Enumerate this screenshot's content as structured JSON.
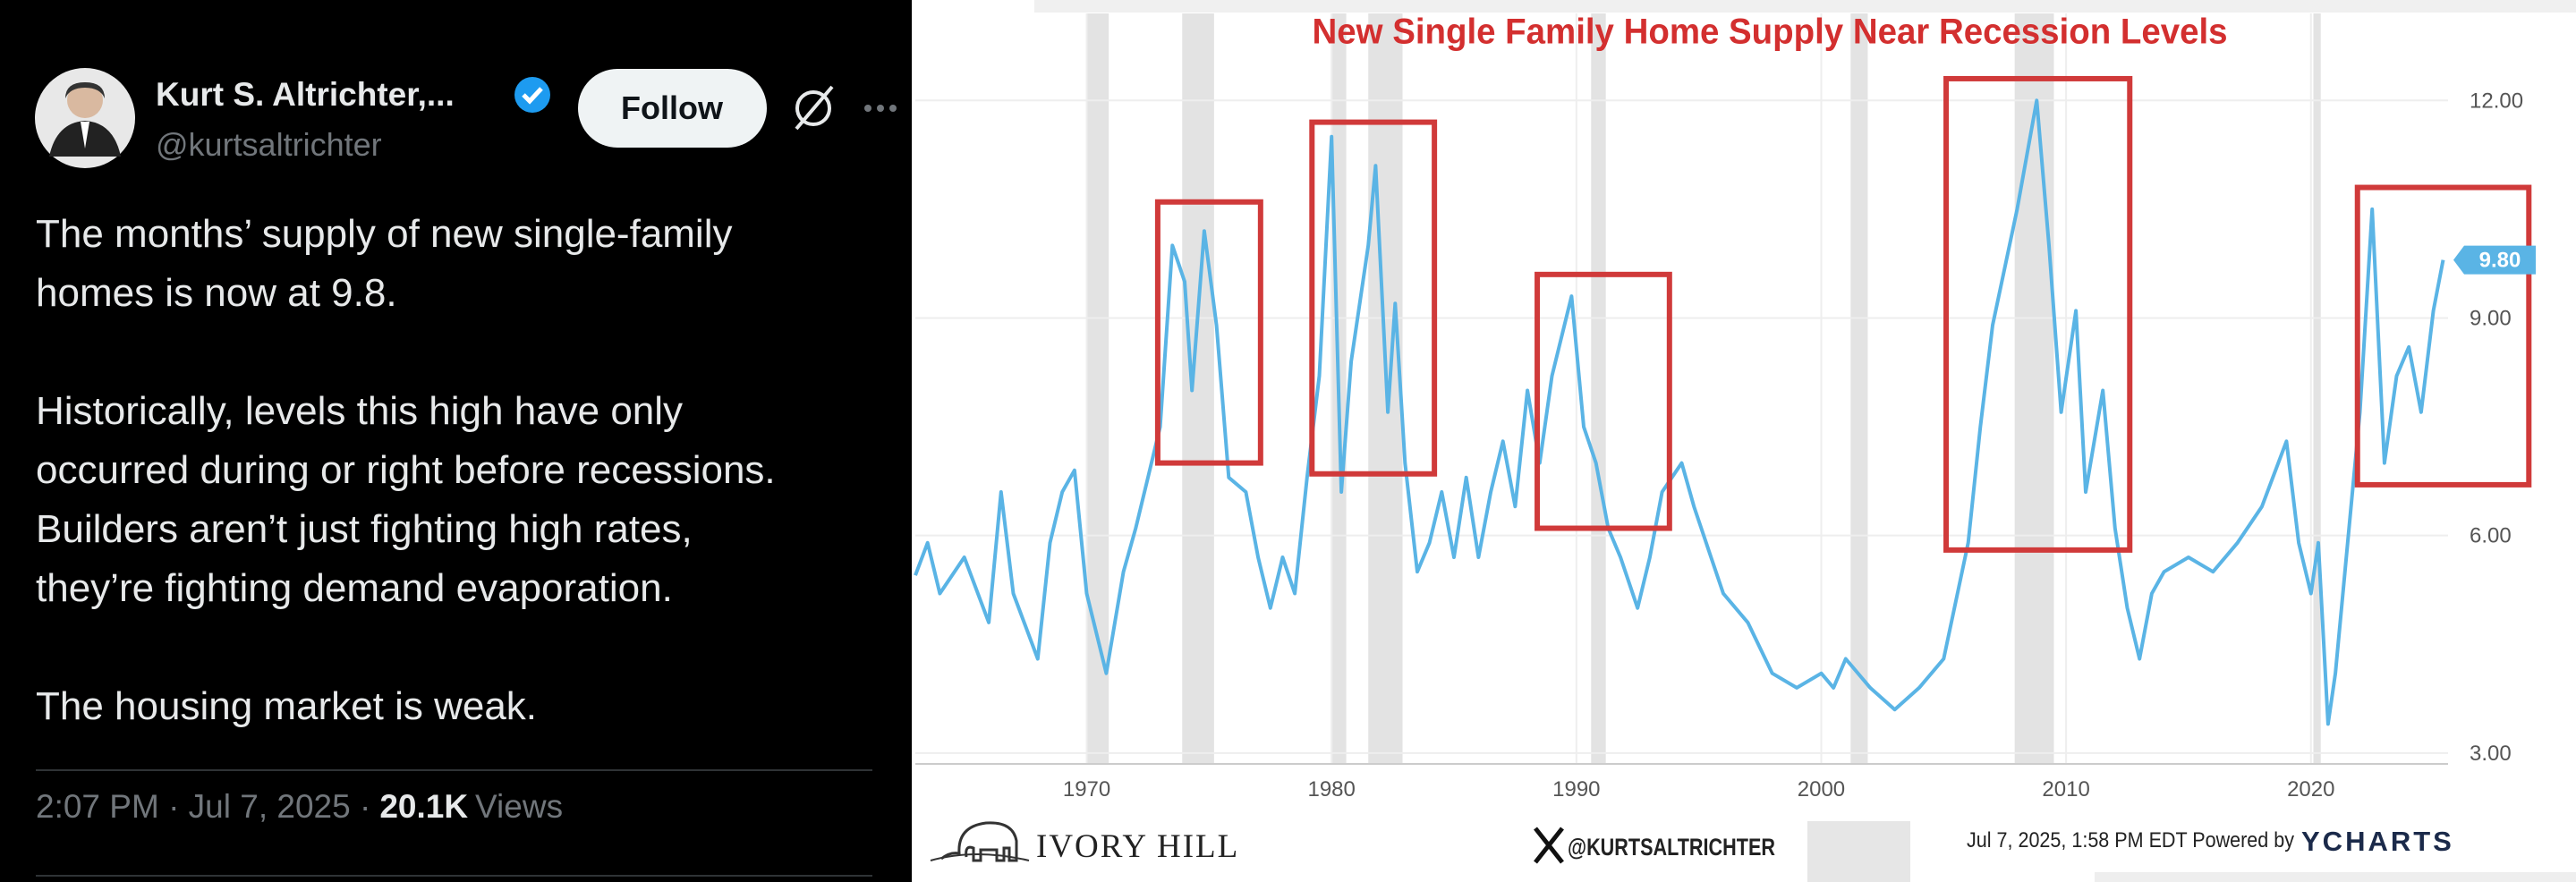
{
  "tweet": {
    "name": "Kurt S. Altrichter,...",
    "handle": "@kurtsaltrichter",
    "follow": "Follow",
    "paragraphs": [
      [
        "The months’ supply of new single-family",
        "homes is now at 9.8."
      ],
      [
        "Historically, levels this high have only",
        "occurred during or right before recessions.",
        "Builders aren’t just fighting high rates,",
        "they’re fighting demand evaporation."
      ],
      [
        "The housing market is weak."
      ]
    ],
    "timestamp": "2:07 PM · Jul 7, 2025 ·",
    "views": "20.1K",
    "views_label": "Views"
  },
  "chart_data": {
    "type": "line",
    "title": "New Single Family Home Supply Near Recession Levels",
    "xlim": [
      1963,
      2025.6
    ],
    "ylim": [
      2.85,
      13.2
    ],
    "xticks": [
      1970,
      1980,
      1990,
      2000,
      2010,
      2020
    ],
    "yticks": [
      {
        "value": 3,
        "label": "3.00"
      },
      {
        "value": 6,
        "label": "6.00"
      },
      {
        "value": 9,
        "label": "9.00"
      },
      {
        "value": 12,
        "label": "12.00"
      }
    ],
    "grid": true,
    "series": [
      {
        "color": "#5ab4e5",
        "x": [
          1963,
          1963.5,
          1964,
          1965,
          1966,
          1966.5,
          1967,
          1968,
          1968.5,
          1969,
          1969.5,
          1970,
          1970.8,
          1971.5,
          1972,
          1972.5,
          1973,
          1973.5,
          1974,
          1974.3,
          1974.8,
          1975.3,
          1975.8,
          1976.5,
          1977,
          1977.5,
          1978,
          1978.5,
          1979,
          1979.5,
          1980,
          1980.4,
          1980.8,
          1981.5,
          1981.8,
          1982.3,
          1982.6,
          1983,
          1983.5,
          1984,
          1984.5,
          1985,
          1985.5,
          1986,
          1986.5,
          1987,
          1987.5,
          1988,
          1988.5,
          1989,
          1989.8,
          1990.3,
          1990.8,
          1991.3,
          1991.8,
          1992.5,
          1993,
          1993.5,
          1994.3,
          1994.8,
          1995.5,
          1996,
          1997,
          1998,
          1999,
          2000,
          2000.5,
          2001,
          2002,
          2003,
          2004,
          2005,
          2006,
          2006.5,
          2007,
          2008,
          2008.8,
          2009.3,
          2009.8,
          2010.4,
          2010.8,
          2011.5,
          2012,
          2012.5,
          2013,
          2013.5,
          2014,
          2015,
          2016,
          2017,
          2018,
          2019,
          2019.5,
          2020,
          2020.3,
          2020.7,
          2021,
          2021.5,
          2022,
          2022.5,
          2023,
          2023.5,
          2024,
          2024.5,
          2025,
          2025.4
        ],
        "values": [
          5.45,
          5.9,
          5.2,
          5.7,
          4.8,
          6.6,
          5.2,
          4.3,
          5.9,
          6.6,
          6.9,
          5.2,
          4.1,
          5.5,
          6.1,
          6.8,
          7.5,
          10.0,
          9.5,
          8.0,
          10.2,
          8.9,
          6.8,
          6.6,
          5.7,
          5.0,
          5.7,
          5.2,
          6.8,
          8.2,
          11.5,
          6.6,
          8.4,
          10.0,
          11.1,
          7.7,
          9.2,
          7.0,
          5.5,
          5.9,
          6.6,
          5.7,
          6.8,
          5.7,
          6.6,
          7.3,
          6.4,
          8.0,
          7.0,
          8.2,
          9.3,
          7.5,
          7.0,
          6.1,
          5.7,
          5.0,
          5.7,
          6.6,
          7.0,
          6.4,
          5.7,
          5.2,
          4.8,
          4.1,
          3.9,
          4.1,
          3.9,
          4.3,
          3.9,
          3.6,
          3.9,
          4.3,
          5.9,
          7.5,
          8.9,
          10.5,
          12.0,
          10.0,
          7.7,
          9.1,
          6.6,
          8.0,
          6.1,
          5.0,
          4.3,
          5.2,
          5.5,
          5.7,
          5.5,
          5.9,
          6.4,
          7.3,
          5.9,
          5.2,
          5.9,
          3.4,
          4.1,
          5.9,
          7.7,
          10.5,
          7.0,
          8.2,
          8.6,
          7.7,
          9.1,
          9.8
        ]
      }
    ],
    "latest": {
      "value": 9.8,
      "label": "9.80"
    },
    "recessions": [
      [
        1970.0,
        1970.9
      ],
      [
        1973.9,
        1975.2
      ],
      [
        1980.0,
        1980.6
      ],
      [
        1981.5,
        1982.9
      ],
      [
        1990.6,
        1991.2
      ],
      [
        2001.2,
        2001.9
      ],
      [
        2007.9,
        2009.5
      ],
      [
        2020.1,
        2020.4
      ]
    ],
    "highlights": [
      {
        "x": [
          1972.9,
          1977.1
        ],
        "y": [
          7.0,
          10.6
        ]
      },
      {
        "x": [
          1979.2,
          1984.2
        ],
        "y": [
          6.85,
          11.7
        ]
      },
      {
        "x": [
          1988.4,
          1993.8
        ],
        "y": [
          6.1,
          9.6
        ]
      },
      {
        "x": [
          2005.1,
          2012.6
        ],
        "y": [
          5.8,
          12.3
        ]
      },
      {
        "x": [
          2021.9,
          2028.9
        ],
        "y": [
          6.7,
          10.8
        ]
      }
    ]
  },
  "footer": {
    "brand": "IVORY HILL",
    "x_handle": "@KURTSALTRICHTER",
    "stamp": "Jul 7, 2025, 1:58 PM EDT Powered by",
    "ycharts": "YCHARTS"
  }
}
